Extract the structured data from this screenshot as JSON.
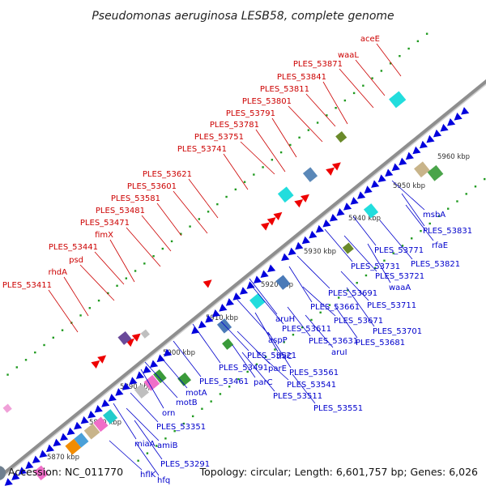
{
  "header": {
    "title": "Pseudomonas aeruginosa LESB58, complete genome"
  },
  "footer": {
    "accession": "Accession: NC_011770",
    "summary": "Topology: circular; Length: 6,601,757 bp; Genes: 6,026"
  },
  "colors": {
    "leading_strand": "#ee0000",
    "lagging_strand": "#0000dd",
    "label_red": "#cc0000",
    "label_blue": "#0000cc",
    "backbone": "#909090",
    "tick_dots": "#22aa22"
  },
  "scale": {
    "ticks": [
      {
        "label": "5870 kbp"
      },
      {
        "label": "5880 kbp"
      },
      {
        "label": "5890 kbp"
      },
      {
        "label": "5900 kbp"
      },
      {
        "label": "5910 kbp"
      },
      {
        "label": "5920 kbp"
      },
      {
        "label": "5930 kbp"
      },
      {
        "label": "5940 kbp"
      },
      {
        "label": "5950 kbp"
      },
      {
        "label": "5960 kbp"
      }
    ]
  },
  "labels_top": [
    "aceE",
    "waaL",
    "PLES_53871",
    "PLES_53841",
    "PLES_53811",
    "PLES_53801",
    "PLES_53791",
    "PLES_53781",
    "PLES_53751",
    "PLES_53741",
    "PLES_53621",
    "PLES_53601",
    "PLES_53581",
    "PLES_53481",
    "PLES_53471",
    "fimX",
    "PLES_53441",
    "psd",
    "rhdA",
    "PLES_53411"
  ],
  "labels_bottom": [
    "msbA",
    "PLES_53831",
    "rfaE",
    "PLES_53821",
    "PLES_53771",
    "PLES_53731",
    "PLES_53721",
    "waaA",
    "PLES_53711",
    "PLES_53691",
    "PLES_53661",
    "PLES_53701",
    "PLES_53671",
    "PLES_53681",
    "aruH",
    "PLES_53611",
    "PLES_53631",
    "aruI",
    "aspP",
    "thiC",
    "PLES_53521",
    "parE",
    "PLES_53561",
    "PLES_53491",
    "PLES_53541",
    "parC",
    "PLES_53461",
    "PLES_53511",
    "PLES_53551",
    "motA",
    "motB",
    "orn",
    "PLES_53351",
    "amiB",
    "miaA",
    "PLES_53291",
    "hflK",
    "hfq"
  ]
}
